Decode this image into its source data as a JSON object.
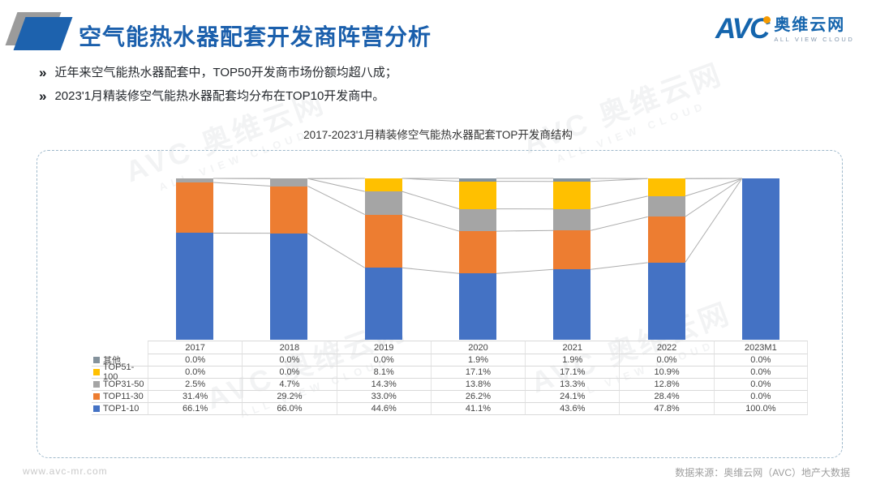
{
  "header": {
    "title": "空气能热水器配套开发商阵营分析",
    "logo": {
      "avc": "AVC",
      "cn": "奥维云网",
      "en": "ALL VIEW CLOUD"
    }
  },
  "bullets": [
    {
      "marker": "»",
      "text": "近年来空气能热水器配套中，TOP50开发商市场份额均超八成；"
    },
    {
      "marker": "»",
      "text": "2023'1月精装修空气能热水器配套均分布在TOP10开发商中。"
    }
  ],
  "chart_data": {
    "type": "bar",
    "subtype": "stacked-100-percent-with-series-lines",
    "title": "2017-2023'1月精装修空气能热水器配套TOP开发商结构",
    "categories": [
      "2017",
      "2018",
      "2019",
      "2020",
      "2021",
      "2022",
      "2023M1"
    ],
    "series": [
      {
        "name": "其他",
        "color": "#84929C",
        "values": [
          0.0,
          0.0,
          0.0,
          1.9,
          1.9,
          0.0,
          0.0
        ]
      },
      {
        "name": "TOP51-100",
        "color": "#FFC000",
        "values": [
          0.0,
          0.0,
          8.1,
          17.1,
          17.1,
          10.9,
          0.0
        ]
      },
      {
        "name": "TOP31-50",
        "color": "#A5A5A5",
        "values": [
          2.5,
          4.7,
          14.3,
          13.8,
          13.3,
          12.8,
          0.0
        ]
      },
      {
        "name": "TOP11-30",
        "color": "#ED7D31",
        "values": [
          31.4,
          29.2,
          33.0,
          26.2,
          24.1,
          28.4,
          0.0
        ]
      },
      {
        "name": "TOP1-10",
        "color": "#4472C4",
        "values": [
          66.1,
          66.0,
          44.6,
          41.1,
          43.6,
          47.8,
          100.0
        ]
      }
    ],
    "value_format": "percent-1dp",
    "ylim": [
      0,
      100
    ],
    "grid": false,
    "legend_position": "table-left-column",
    "series_line_color": "#ADADAD"
  },
  "footer": {
    "left": "www.avc-mr.com",
    "right": "数据来源：奥维云网（AVC）地产大数据"
  },
  "watermark": {
    "line1": "AVC 奥维云网",
    "line2": "ALL VIEW CLOUD"
  },
  "colors": {
    "accent_blue": "#1A5FAC",
    "logo_orange": "#F59A00"
  }
}
